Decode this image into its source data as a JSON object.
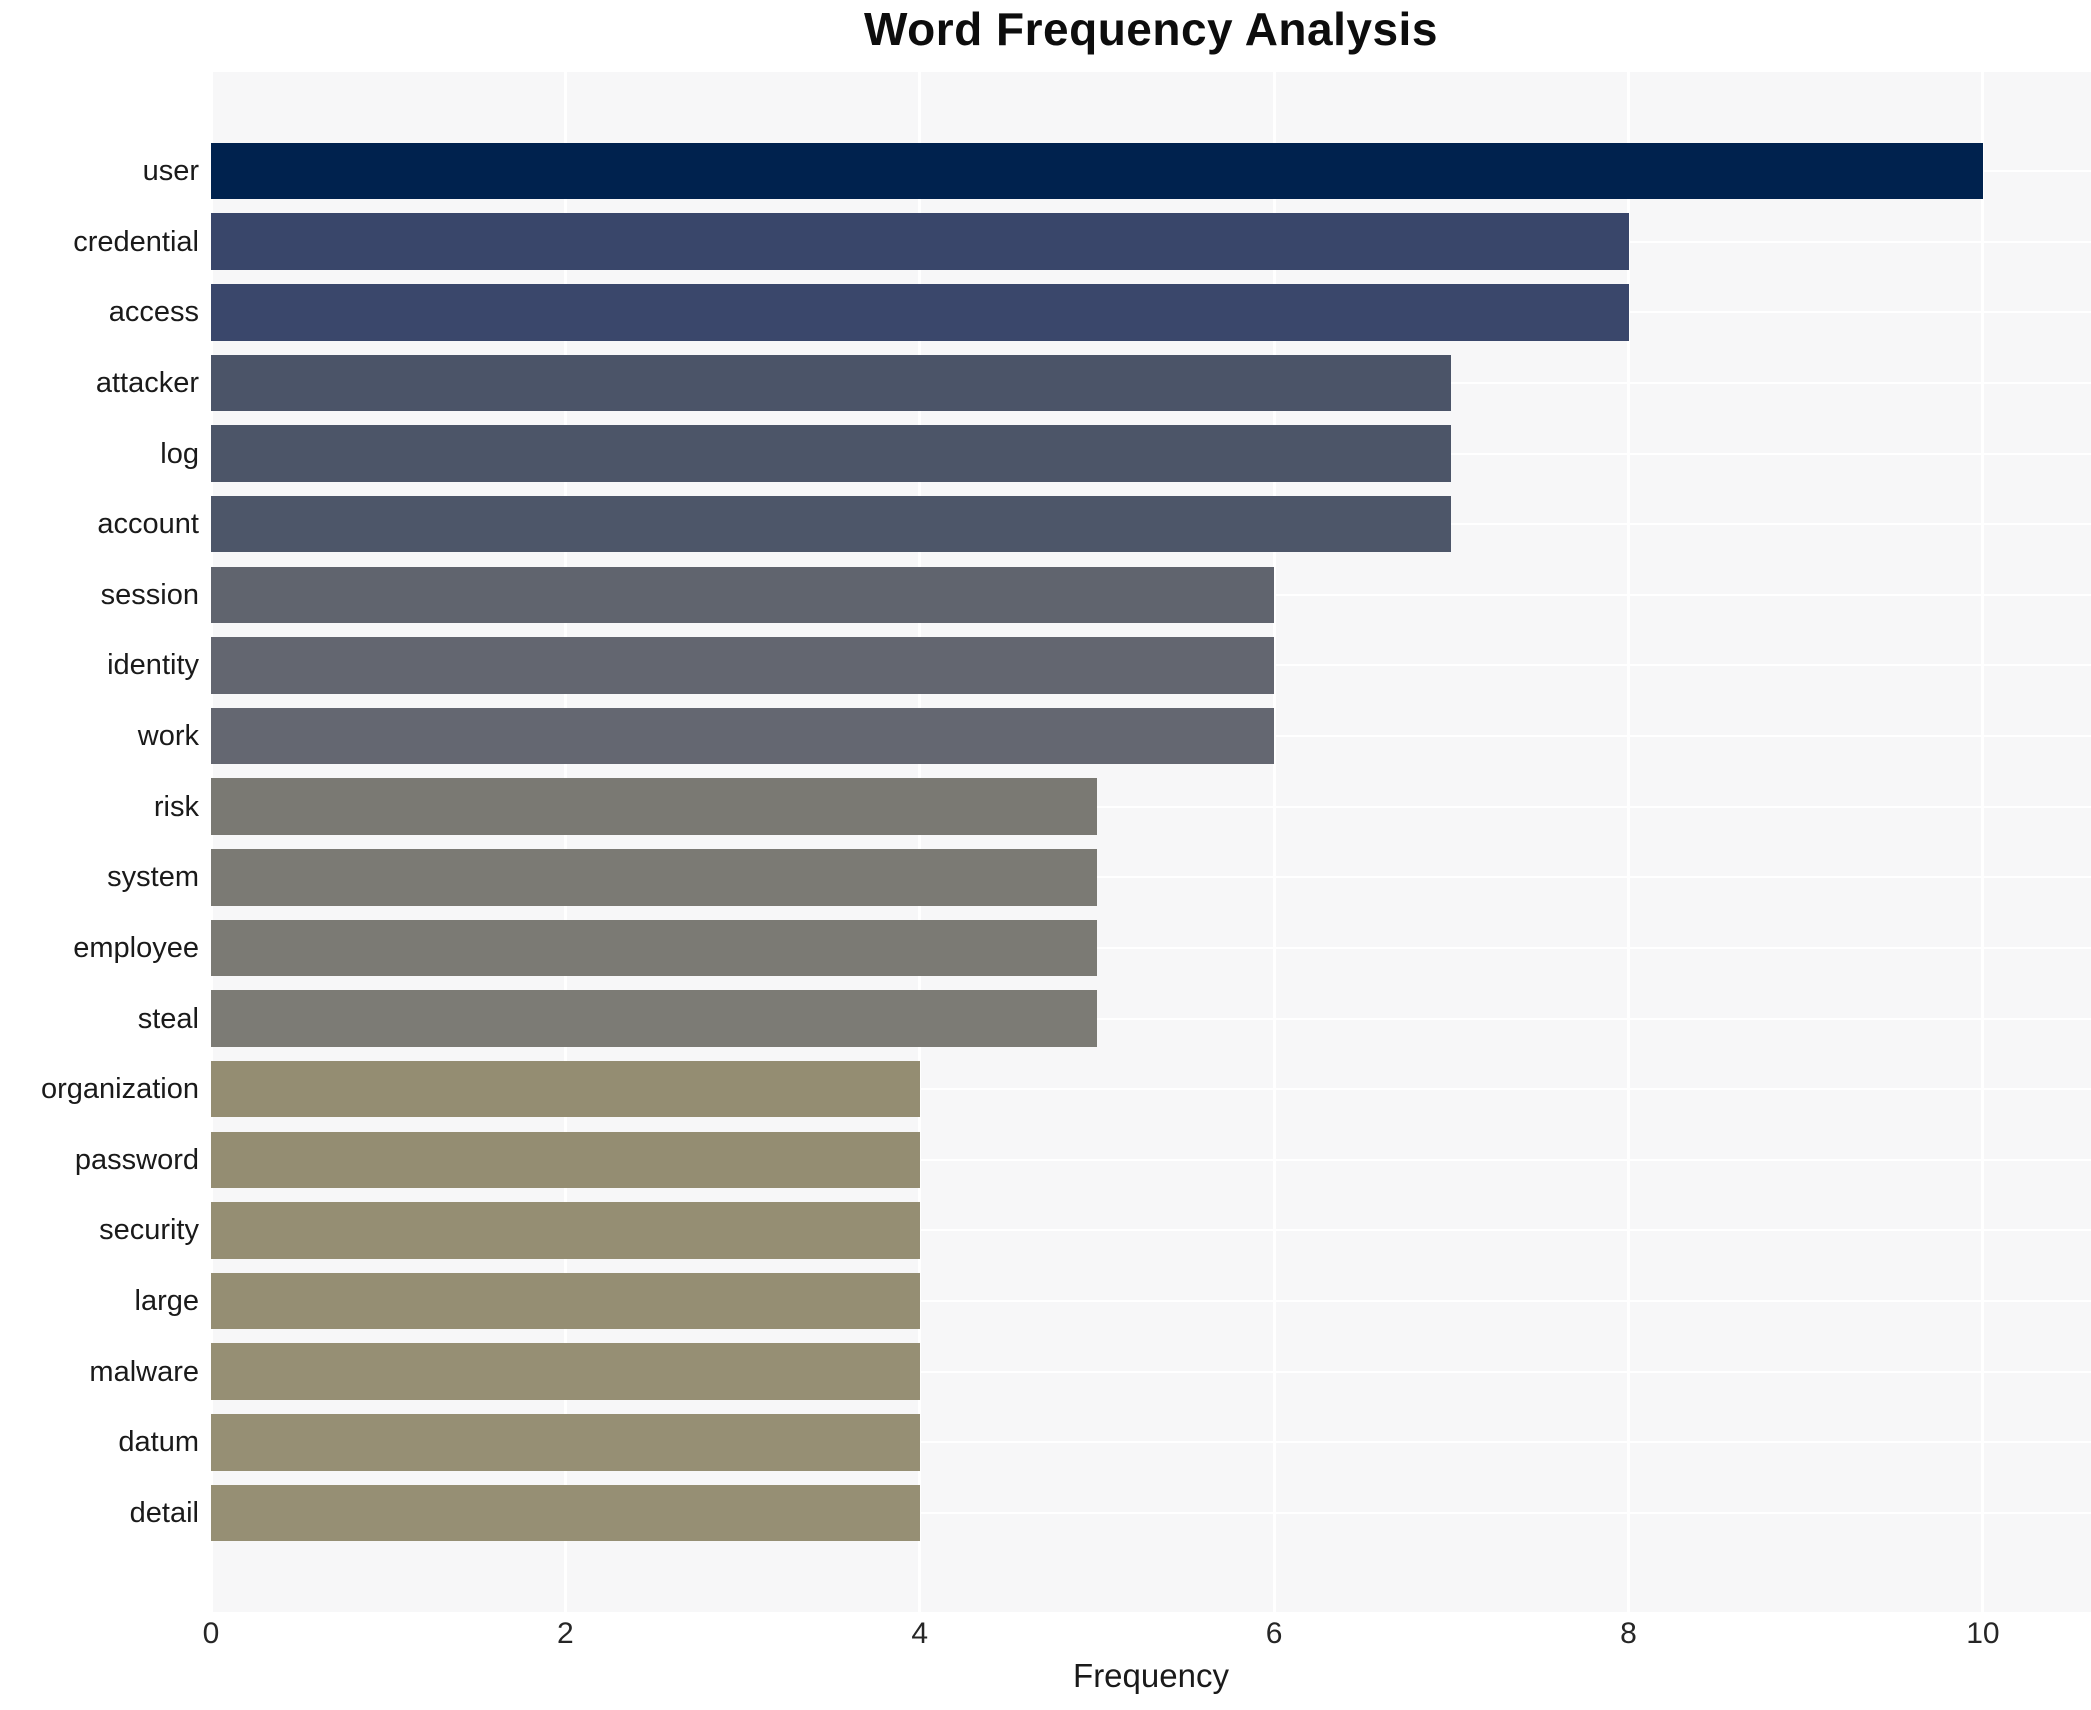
{
  "chart_data": {
    "type": "bar",
    "orientation": "horizontal",
    "title": "Word Frequency Analysis",
    "xlabel": "Frequency",
    "ylabel": "",
    "categories": [
      "user",
      "credential",
      "access",
      "attacker",
      "log",
      "account",
      "session",
      "identity",
      "work",
      "risk",
      "system",
      "employee",
      "steal",
      "organization",
      "password",
      "security",
      "large",
      "malware",
      "datum",
      "detail"
    ],
    "values": [
      10,
      8,
      8,
      7,
      7,
      7,
      6,
      6,
      6,
      5,
      5,
      5,
      5,
      4,
      4,
      4,
      4,
      4,
      4,
      4
    ],
    "bar_colors": [
      "#00224e",
      "#39466a",
      "#3a476b",
      "#4b5468",
      "#4c5568",
      "#4d5669",
      "#60646e",
      "#636670",
      "#646771",
      "#7a7973",
      "#7b7a74",
      "#7b7a74",
      "#7c7b75",
      "#948d72",
      "#948d72",
      "#958e73",
      "#958e73",
      "#968f74",
      "#968f74",
      "#968f74"
    ],
    "xticks": [
      0,
      2,
      4,
      6,
      8,
      10
    ],
    "xlim": [
      0,
      10.61
    ],
    "grid": true,
    "legend_position": "none",
    "plot_background": "#f7f7f8",
    "grid_color": "#ffffff",
    "title_color": "#0d0d0d",
    "tick_label_color": "#262626",
    "category_label_color": "#1a1a1a"
  }
}
